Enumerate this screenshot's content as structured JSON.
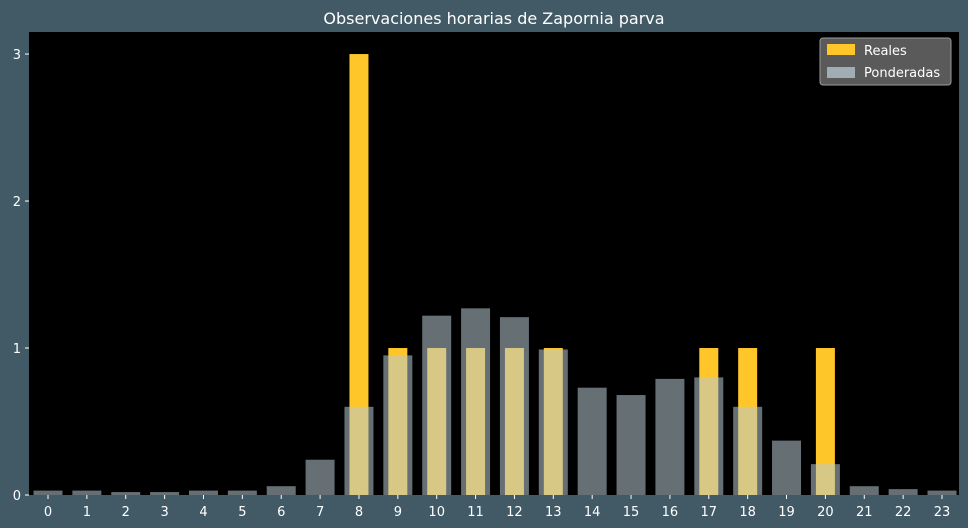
{
  "chart_data": {
    "type": "bar",
    "title": "Observaciones horarias de Zapornia parva",
    "xlabel": "",
    "ylabel": "",
    "categories": [
      "0",
      "1",
      "2",
      "3",
      "4",
      "5",
      "6",
      "7",
      "8",
      "9",
      "10",
      "11",
      "12",
      "13",
      "14",
      "15",
      "16",
      "17",
      "18",
      "19",
      "20",
      "21",
      "22",
      "23"
    ],
    "ylim": [
      0,
      3.15
    ],
    "yticks": [
      0,
      1,
      2,
      3
    ],
    "legend_position": "top-right",
    "series": [
      {
        "name": "Reales",
        "color": "#ffc629",
        "values": [
          0,
          0,
          0,
          0,
          0,
          0,
          0,
          0,
          3,
          1,
          1,
          1,
          1,
          1,
          0,
          0,
          0,
          1,
          1,
          0,
          1,
          0,
          0,
          0
        ]
      },
      {
        "name": "Ponderadas",
        "color": "#b8cbd3",
        "opacity": 0.55,
        "values": [
          0.03,
          0.03,
          0.02,
          0.02,
          0.03,
          0.03,
          0.06,
          0.24,
          0.6,
          0.95,
          1.22,
          1.27,
          1.21,
          0.99,
          0.73,
          0.68,
          0.79,
          0.8,
          0.6,
          0.37,
          0.21,
          0.06,
          0.04,
          0.03
        ]
      }
    ],
    "colors": {
      "background": "#415a66",
      "plot_area": "#000000",
      "text": "#ffffff",
      "legend_bg": "#5a5a5a"
    }
  }
}
